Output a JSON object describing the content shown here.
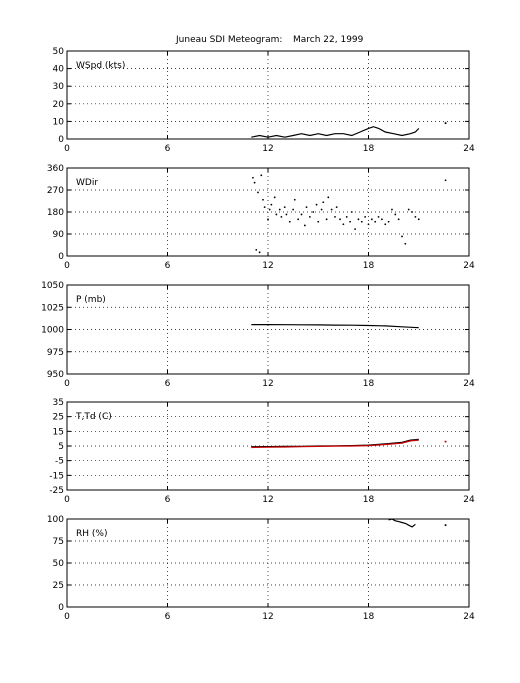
{
  "figure": {
    "title_station": "Juneau SDI Meteogram:",
    "title_date": "March 22, 1999"
  },
  "chart_data": [
    {
      "type": "line",
      "panel": "wspd",
      "ylabel": "WSpd (kts)",
      "xlim": [
        0,
        24
      ],
      "ylim": [
        0,
        50
      ],
      "xticks": [
        0,
        6,
        12,
        18,
        24
      ],
      "yticks": [
        0,
        10,
        20,
        30,
        40,
        50
      ],
      "grid": true,
      "series": [
        {
          "color": "#000000",
          "x": [
            11.0,
            11.5,
            12.0,
            12.5,
            13.0,
            13.5,
            14.0,
            14.5,
            15.0,
            15.5,
            16.0,
            16.5,
            17.0,
            17.5,
            18.0,
            18.3,
            18.6,
            19.0,
            19.5,
            20.0,
            20.5,
            20.8,
            21.0
          ],
          "y": [
            1,
            2,
            1,
            2,
            1,
            2,
            3,
            2,
            3,
            2,
            3,
            3,
            2,
            4,
            6,
            7,
            6,
            4,
            3,
            2,
            3,
            4,
            6
          ]
        }
      ],
      "isolated_points": [
        {
          "x": 22.6,
          "y": 9
        }
      ]
    },
    {
      "type": "scatter",
      "panel": "wdir",
      "ylabel": "WDir",
      "xlim": [
        0,
        24
      ],
      "ylim": [
        0,
        360
      ],
      "xticks": [
        0,
        6,
        12,
        18,
        24
      ],
      "yticks": [
        0,
        90,
        180,
        270,
        360
      ],
      "grid": true,
      "series": [
        {
          "color": "#000000",
          "x": [
            11.1,
            11.2,
            11.3,
            11.4,
            11.5,
            11.6,
            11.7,
            11.8,
            12.0,
            12.1,
            12.2,
            12.4,
            12.5,
            12.7,
            12.8,
            13.0,
            13.1,
            13.3,
            13.5,
            13.6,
            13.8,
            14.0,
            14.2,
            14.3,
            14.5,
            14.7,
            14.9,
            15.0,
            15.2,
            15.3,
            15.5,
            15.6,
            15.8,
            16.0,
            16.1,
            16.3,
            16.5,
            16.7,
            16.9,
            17.0,
            17.2,
            17.4,
            17.6,
            17.8,
            18.0,
            18.2,
            18.4,
            18.6,
            18.8,
            19.0,
            19.2,
            19.4,
            19.6,
            19.8,
            20.0,
            20.2,
            20.4,
            20.6,
            20.8,
            21.0,
            22.6
          ],
          "y": [
            320,
            300,
            25,
            260,
            15,
            330,
            230,
            200,
            150,
            190,
            210,
            240,
            170,
            190,
            160,
            200,
            170,
            140,
            190,
            230,
            150,
            170,
            125,
            200,
            160,
            180,
            210,
            140,
            190,
            220,
            150,
            240,
            190,
            160,
            200,
            150,
            130,
            160,
            140,
            180,
            110,
            150,
            140,
            160,
            130,
            150,
            140,
            160,
            150,
            130,
            140,
            190,
            170,
            150,
            80,
            50,
            190,
            180,
            160,
            150,
            310
          ]
        }
      ]
    },
    {
      "type": "line",
      "panel": "pressure",
      "ylabel": "P (mb)",
      "xlim": [
        0,
        24
      ],
      "ylim": [
        950,
        1050
      ],
      "xticks": [
        0,
        6,
        12,
        18,
        24
      ],
      "yticks": [
        950,
        975,
        1000,
        1025,
        1050
      ],
      "grid": true,
      "series": [
        {
          "color": "#000000",
          "x": [
            11.0,
            12.0,
            13.0,
            14.0,
            15.0,
            16.0,
            17.0,
            18.0,
            19.0,
            20.0,
            21.0
          ],
          "y": [
            1005.5,
            1005.5,
            1005.4,
            1005.3,
            1005.2,
            1005.0,
            1004.8,
            1004.5,
            1004.0,
            1003.0,
            1002.0
          ]
        }
      ]
    },
    {
      "type": "line",
      "panel": "temperature",
      "ylabel": "T,Td (C)",
      "xlim": [
        0,
        24
      ],
      "ylim": [
        -25,
        35
      ],
      "xticks": [
        0,
        6,
        12,
        18,
        24
      ],
      "yticks": [
        -25,
        -15,
        -5,
        5,
        15,
        25,
        35
      ],
      "grid": true,
      "series": [
        {
          "color": "#000000",
          "x": [
            11.0,
            12.0,
            13.0,
            14.0,
            15.0,
            16.0,
            17.0,
            18.0,
            19.0,
            20.0,
            20.5,
            21.0
          ],
          "y": [
            4.5,
            4.6,
            4.7,
            4.8,
            5.0,
            5.1,
            5.3,
            5.6,
            6.5,
            7.5,
            9.0,
            9.5
          ]
        },
        {
          "color": "#cc0000",
          "x": [
            11.0,
            12.0,
            13.0,
            14.0,
            15.0,
            16.0,
            17.0,
            18.0,
            19.0,
            20.0,
            20.5,
            21.0
          ],
          "y": [
            4.0,
            4.2,
            4.3,
            4.5,
            4.7,
            4.9,
            5.0,
            5.3,
            6.0,
            7.0,
            8.5,
            9.0
          ]
        }
      ],
      "isolated_points": [
        {
          "x": 22.6,
          "y": 8,
          "color": "#cc0000"
        }
      ]
    },
    {
      "type": "line",
      "panel": "rh",
      "ylabel": "RH (%)",
      "xlim": [
        0,
        24
      ],
      "ylim": [
        0,
        100
      ],
      "xticks": [
        0,
        6,
        12,
        18,
        24
      ],
      "yticks": [
        0,
        25,
        50,
        75,
        100
      ],
      "grid": true,
      "series": [
        {
          "color": "#000000",
          "x": [
            19.2,
            19.4,
            19.6,
            19.8,
            20.0,
            20.2,
            20.4,
            20.6,
            20.8
          ],
          "y": [
            99,
            100,
            98,
            97,
            96,
            95,
            93,
            91,
            94
          ]
        }
      ],
      "isolated_points": [
        {
          "x": 22.6,
          "y": 93
        }
      ]
    }
  ]
}
